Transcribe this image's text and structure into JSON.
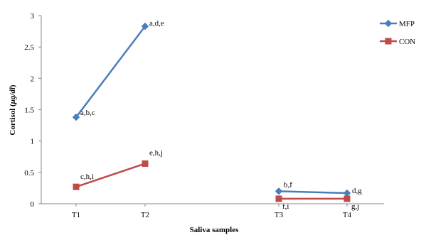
{
  "chart_data": {
    "type": "line",
    "title": "",
    "xlabel": "Saliva samples",
    "ylabel_prefix": "Cortisol (",
    "ylabel_unit": "μg/dl",
    "ylabel_suffix": ")",
    "categories": [
      "T1",
      "T2",
      "T3",
      "T4"
    ],
    "ylim": [
      0,
      3
    ],
    "yticks": [
      "0",
      "0.5",
      "1",
      "1.5",
      "2",
      "2.5",
      "3"
    ],
    "grid": false,
    "legend": "right",
    "series": [
      {
        "name": "MFP",
        "color": "#4a7ebb",
        "marker": "diamond",
        "segments": [
          {
            "x": [
              "T1",
              "T2"
            ],
            "values": [
              1.38,
              2.83
            ],
            "labels": [
              "a,b,c",
              "a,d,e"
            ]
          },
          {
            "x": [
              "T3",
              "T4"
            ],
            "values": [
              0.2,
              0.17
            ],
            "labels": [
              "b,f",
              "d,g"
            ]
          }
        ]
      },
      {
        "name": "CON",
        "color": "#be4b48",
        "marker": "square",
        "segments": [
          {
            "x": [
              "T1",
              "T2"
            ],
            "values": [
              0.27,
              0.64
            ],
            "labels": [
              "c,h,i",
              "e,h,j"
            ]
          },
          {
            "x": [
              "T3",
              "T4"
            ],
            "values": [
              0.08,
              0.08
            ],
            "labels": [
              "f,i",
              "g,j"
            ]
          }
        ]
      }
    ]
  }
}
